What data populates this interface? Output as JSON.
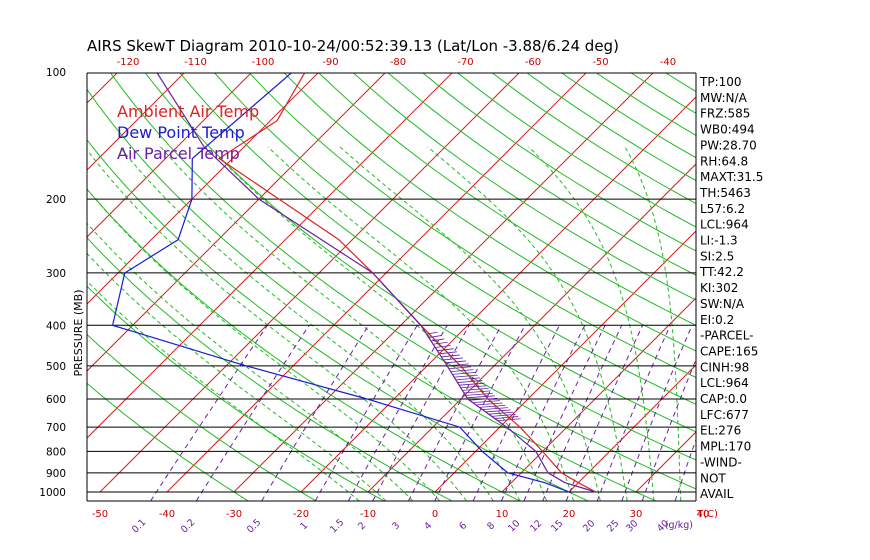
{
  "chart_data": {
    "type": "line",
    "title": "AIRS SkewT Diagram 2010-10-24/00:52:39.13 (Lat/Lon -3.88/6.24 deg)",
    "ylabel": "PRESSURE (MB)",
    "pressure_ticks": [
      100,
      200,
      300,
      400,
      500,
      600,
      700,
      800,
      900,
      1000
    ],
    "temp_ticks_bottom": [
      -50,
      -40,
      -30,
      -20,
      -10,
      0,
      10,
      20,
      30,
      40
    ],
    "temp_ticks_top": [
      -120,
      -110,
      -100,
      -90,
      -80,
      -70,
      -60,
      -50,
      -40
    ],
    "temp_unit_label": "T(C)",
    "mixing_ratio_ticks": [
      "0.1",
      "0.2",
      "0.5",
      "1",
      "1.5",
      "2",
      "3",
      "4",
      "6",
      "8",
      "10",
      "12",
      "15",
      "20",
      "25",
      "30",
      "40"
    ],
    "mixing_ratio_unit": "(g/kg)",
    "legend": [
      {
        "label": "Ambient Air Temp",
        "color": "#dd2222"
      },
      {
        "label": "Dew Point Temp",
        "color": "#1a1ad8"
      },
      {
        "label": "Air Parcel Temp",
        "color": "#6a1fa3"
      }
    ],
    "series": [
      {
        "name": "Ambient Air Temp",
        "color": "#dd2222",
        "points": [
          [
            100,
            -82
          ],
          [
            130,
            -79
          ],
          [
            160,
            -82
          ],
          [
            200,
            -67
          ],
          [
            250,
            -52
          ],
          [
            300,
            -42
          ],
          [
            400,
            -27
          ],
          [
            500,
            -15
          ],
          [
            600,
            -6
          ],
          [
            700,
            3
          ],
          [
            800,
            10
          ],
          [
            900,
            16
          ],
          [
            950,
            20
          ],
          [
            1000,
            24
          ]
        ]
      },
      {
        "name": "Dew Point Temp",
        "color": "#1a1ad8",
        "points": [
          [
            100,
            -84
          ],
          [
            160,
            -86
          ],
          [
            200,
            -80
          ],
          [
            250,
            -76
          ],
          [
            300,
            -79
          ],
          [
            400,
            -73
          ],
          [
            500,
            -47
          ],
          [
            600,
            -24
          ],
          [
            700,
            -6
          ],
          [
            800,
            1
          ],
          [
            900,
            8
          ],
          [
            950,
            15
          ],
          [
            1000,
            20
          ]
        ]
      },
      {
        "name": "Air Parcel Temp",
        "color": "#6a1fa3",
        "points": [
          [
            100,
            -104
          ],
          [
            150,
            -86
          ],
          [
            200,
            -70
          ],
          [
            300,
            -42
          ],
          [
            400,
            -27
          ],
          [
            500,
            -17
          ],
          [
            600,
            -9
          ],
          [
            700,
            1
          ],
          [
            800,
            9
          ],
          [
            900,
            14
          ],
          [
            950,
            18
          ],
          [
            1000,
            24
          ]
        ]
      }
    ],
    "indices": [
      "TP:100",
      "MW:N/A",
      "FRZ:585",
      "WB0:494",
      "PW:28.70",
      "RH:64.8",
      "MAXT:31.5",
      "TH:5463",
      "L57:6.2",
      "LCL:964",
      "LI:-1.3",
      "SI:2.5",
      "TT:42.2",
      "KI:302",
      "SW:N/A",
      "EI:0.2",
      "-PARCEL-",
      "CAPE:165",
      "CINH:98",
      "LCL:964",
      "CAP:0.0",
      "LFC:677",
      "EL:276",
      "MPL:170",
      "-WIND-",
      "NOT",
      "AVAIL"
    ],
    "colors": {
      "isotherm": "#d42020",
      "dry_adiabat": "#22bb22",
      "moist_adiabat": "#22bb22",
      "mixing_ratio": "#6a1fa3",
      "isobar": "#000000"
    }
  }
}
